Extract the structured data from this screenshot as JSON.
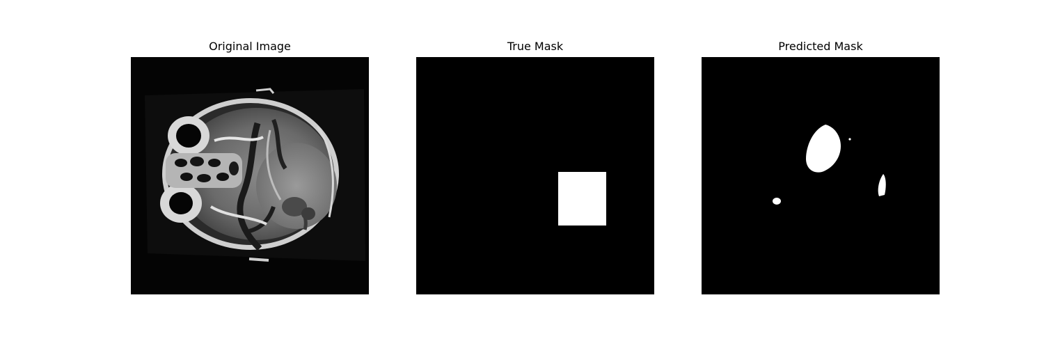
{
  "panels": [
    {
      "title": "Original Image"
    },
    {
      "title": "True Mask"
    },
    {
      "title": "Predicted Mask"
    }
  ],
  "colors": {
    "background": "#ffffff",
    "image_background": "#000000",
    "mask_foreground": "#ffffff"
  }
}
